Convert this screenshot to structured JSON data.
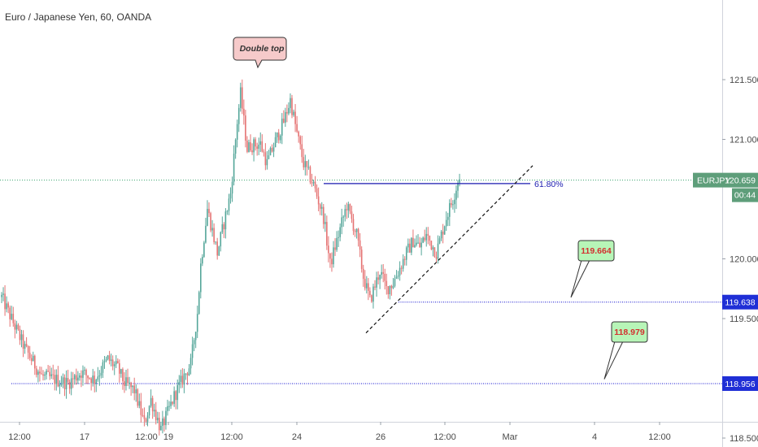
{
  "title": "Euro / Japanese Yen, 60, OANDA",
  "colors": {
    "up": "#55a69a",
    "down": "#e57373",
    "level_line": "#1010d0",
    "fib_line": "#1a1ab0",
    "price_line": "#3aa46e",
    "price_tag_bg": "#5e9e7a",
    "axis_tag_bg": "#1f2fd6",
    "callout_red_bg": "#f6caca",
    "callout_green_bg": "#b7f5b7"
  },
  "price_tag": {
    "symbol": "EURJPY",
    "price": "120.659",
    "countdown": "00:44"
  },
  "annotations": {
    "double_top": "Double top",
    "fib_label": "61.80%",
    "callout_upper": "119.664",
    "callout_lower": "118.979"
  },
  "chart_data": {
    "type": "candlestick",
    "title": "Euro / Japanese Yen, 60, OANDA",
    "y_axis_ticks": [
      "121.500",
      "121.000",
      "120.000",
      "119.500",
      "118.500"
    ],
    "x_axis_ticks": [
      "12:00",
      "17",
      "12:00",
      "19",
      "12:00",
      "24",
      "26",
      "12:00",
      "Mar",
      "4",
      "12:00"
    ],
    "ylim": [
      118.45,
      122.0
    ],
    "current_price": 120.659,
    "horizontal_levels": [
      {
        "price": 119.638,
        "label": "119.638"
      },
      {
        "price": 118.956,
        "label": "118.956"
      }
    ],
    "callouts": [
      {
        "price": 119.664,
        "label": "119.664"
      },
      {
        "price": 118.979,
        "label": "118.979"
      }
    ],
    "fib_level": {
      "label": "61.80%",
      "price": 120.63
    },
    "trendline": {
      "from_price": 119.38,
      "to_price": 120.78,
      "style": "dashed"
    },
    "double_top_price": 121.38,
    "path_keypoints": [
      [
        0,
        119.68
      ],
      [
        14,
        119.25
      ],
      [
        24,
        119.02
      ],
      [
        40,
        118.96
      ],
      [
        48,
        119.05
      ],
      [
        56,
        118.99
      ],
      [
        64,
        119.16
      ],
      [
        70,
        119.08
      ],
      [
        74,
        118.96
      ],
      [
        80,
        118.9
      ],
      [
        86,
        118.62
      ],
      [
        90,
        118.82
      ],
      [
        96,
        118.57
      ],
      [
        104,
        118.85
      ],
      [
        110,
        119.02
      ],
      [
        114,
        119.12
      ],
      [
        118,
        119.55
      ],
      [
        120,
        119.95
      ],
      [
        124,
        120.42
      ],
      [
        130,
        120.05
      ],
      [
        138,
        120.55
      ],
      [
        142,
        121.15
      ],
      [
        144,
        121.38
      ],
      [
        148,
        120.92
      ],
      [
        150,
        120.95
      ],
      [
        156,
        120.96
      ],
      [
        160,
        120.8
      ],
      [
        164,
        120.95
      ],
      [
        170,
        121.15
      ],
      [
        174,
        121.33
      ],
      [
        178,
        121.05
      ],
      [
        182,
        120.8
      ],
      [
        188,
        120.62
      ],
      [
        194,
        120.35
      ],
      [
        198,
        119.95
      ],
      [
        202,
        120.15
      ],
      [
        208,
        120.45
      ],
      [
        214,
        120.2
      ],
      [
        218,
        119.85
      ],
      [
        222,
        119.65
      ],
      [
        228,
        119.9
      ],
      [
        232,
        119.75
      ],
      [
        236,
        119.8
      ],
      [
        244,
        120.05
      ],
      [
        248,
        120.15
      ],
      [
        252,
        120.1
      ],
      [
        256,
        120.2
      ],
      [
        262,
        120.05
      ],
      [
        268,
        120.35
      ],
      [
        272,
        120.5
      ],
      [
        276,
        120.7
      ]
    ]
  }
}
